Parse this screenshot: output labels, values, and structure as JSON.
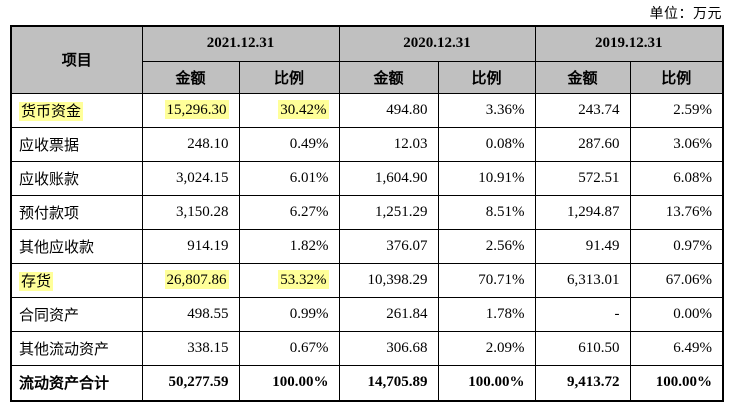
{
  "unit_label": "单位：万元",
  "colors": {
    "header_bg": "#c0c0c0",
    "highlight": "#ffff99",
    "border": "#000000"
  },
  "table": {
    "header": {
      "item": "项目",
      "periods": [
        "2021.12.31",
        "2020.12.31",
        "2019.12.31"
      ],
      "amount_label": "金额",
      "ratio_label": "比例"
    },
    "rows": [
      {
        "label": "货币资金",
        "label_highlight": true,
        "highlight_cells": [
          0,
          1
        ],
        "values": [
          "15,296.30",
          "30.42%",
          "494.80",
          "3.36%",
          "243.74",
          "2.59%"
        ]
      },
      {
        "label": "应收票据",
        "values": [
          "248.10",
          "0.49%",
          "12.03",
          "0.08%",
          "287.60",
          "3.06%"
        ]
      },
      {
        "label": "应收账款",
        "values": [
          "3,024.15",
          "6.01%",
          "1,604.90",
          "10.91%",
          "572.51",
          "6.08%"
        ]
      },
      {
        "label": "预付款项",
        "values": [
          "3,150.28",
          "6.27%",
          "1,251.29",
          "8.51%",
          "1,294.87",
          "13.76%"
        ]
      },
      {
        "label": "其他应收款",
        "values": [
          "914.19",
          "1.82%",
          "376.07",
          "2.56%",
          "91.49",
          "0.97%"
        ]
      },
      {
        "label": "存货",
        "label_highlight": true,
        "highlight_cells": [
          0,
          1
        ],
        "values": [
          "26,807.86",
          "53.32%",
          "10,398.29",
          "70.71%",
          "6,313.01",
          "67.06%"
        ]
      },
      {
        "label": "合同资产",
        "values": [
          "498.55",
          "0.99%",
          "261.84",
          "1.78%",
          "-",
          "0.00%"
        ]
      },
      {
        "label": "其他流动资产",
        "values": [
          "338.15",
          "0.67%",
          "306.68",
          "2.09%",
          "610.50",
          "6.49%"
        ]
      },
      {
        "label": "流动资产合计",
        "total": true,
        "values": [
          "50,277.59",
          "100.00%",
          "14,705.89",
          "100.00%",
          "9,413.72",
          "100.00%"
        ]
      }
    ]
  }
}
